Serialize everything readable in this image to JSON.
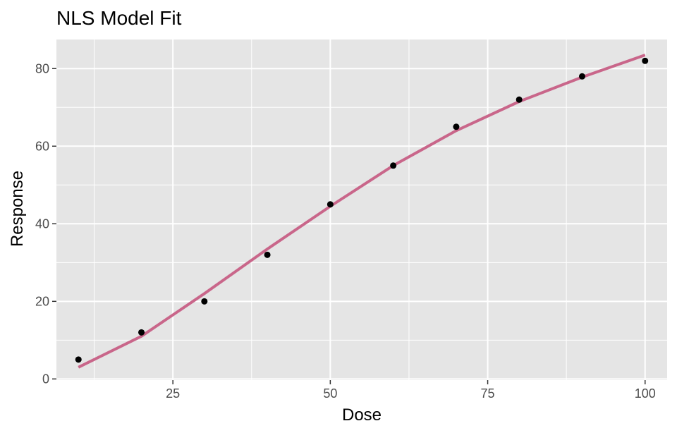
{
  "chart_data": {
    "type": "scatter",
    "title": "NLS Model Fit",
    "xlabel": "Dose",
    "ylabel": "Response",
    "xlim": [
      6.5,
      103.5
    ],
    "ylim": [
      -0.3,
      87.5
    ],
    "x_ticks": [
      25,
      50,
      75,
      100
    ],
    "y_ticks": [
      0,
      20,
      40,
      60,
      80
    ],
    "x_minor_ticks": [
      12.5,
      37.5,
      62.5,
      87.5
    ],
    "y_minor_ticks": [
      10,
      30,
      50,
      70
    ],
    "grid": true,
    "legend": "none",
    "series": [
      {
        "kind": "points",
        "x": [
          10,
          20,
          30,
          40,
          50,
          60,
          70,
          80,
          90,
          100
        ],
        "y": [
          5,
          12,
          20,
          32,
          45,
          55,
          65,
          72,
          78,
          82
        ]
      },
      {
        "kind": "fitted-line",
        "x": [
          10,
          20,
          30,
          40,
          50,
          60,
          70,
          80,
          90,
          100
        ],
        "y": [
          3,
          11,
          22,
          33.5,
          44.5,
          55,
          64,
          71.5,
          77.8,
          83.5
        ]
      }
    ],
    "colors": {
      "points": "#000000",
      "fit_line": "#C9668A",
      "panel_background": "#E5E5E5",
      "grid": "#FFFFFF",
      "tick_label": "#4D4D4D",
      "tick_mark": "#333333"
    }
  }
}
